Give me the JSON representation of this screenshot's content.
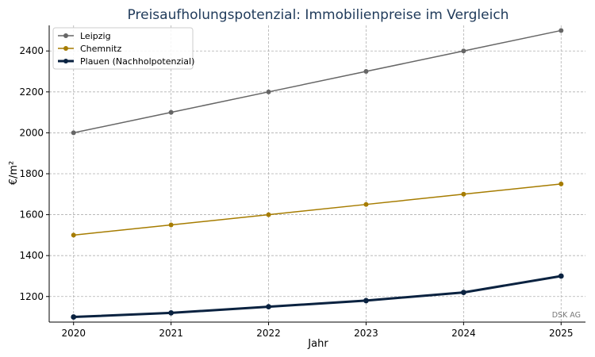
{
  "chart_data": {
    "type": "line",
    "title": "Preisaufholungspotenzial: Immobilienpreise im Vergleich",
    "xlabel": "Jahr",
    "ylabel": "€/m²",
    "x": [
      2020,
      2021,
      2022,
      2023,
      2024,
      2025
    ],
    "yticks": [
      1200,
      1400,
      1600,
      1800,
      2000,
      2200,
      2400
    ],
    "xlim": [
      2019.75,
      2025.25
    ],
    "ylim": [
      1075,
      2525
    ],
    "grid": true,
    "legend_position": "top-left",
    "series": [
      {
        "name": "Leipzig",
        "values": [
          2000,
          2100,
          2200,
          2300,
          2400,
          2500
        ],
        "color": "#666666",
        "bold": false
      },
      {
        "name": "Chemnitz",
        "values": [
          1500,
          1550,
          1600,
          1650,
          1700,
          1750
        ],
        "color": "#a67c00",
        "bold": false
      },
      {
        "name": "Plauen (Nachholpotenzial)",
        "values": [
          1100,
          1120,
          1150,
          1180,
          1220,
          1300
        ],
        "color": "#0a2240",
        "bold": true
      }
    ],
    "watermark": "DSK AG"
  }
}
